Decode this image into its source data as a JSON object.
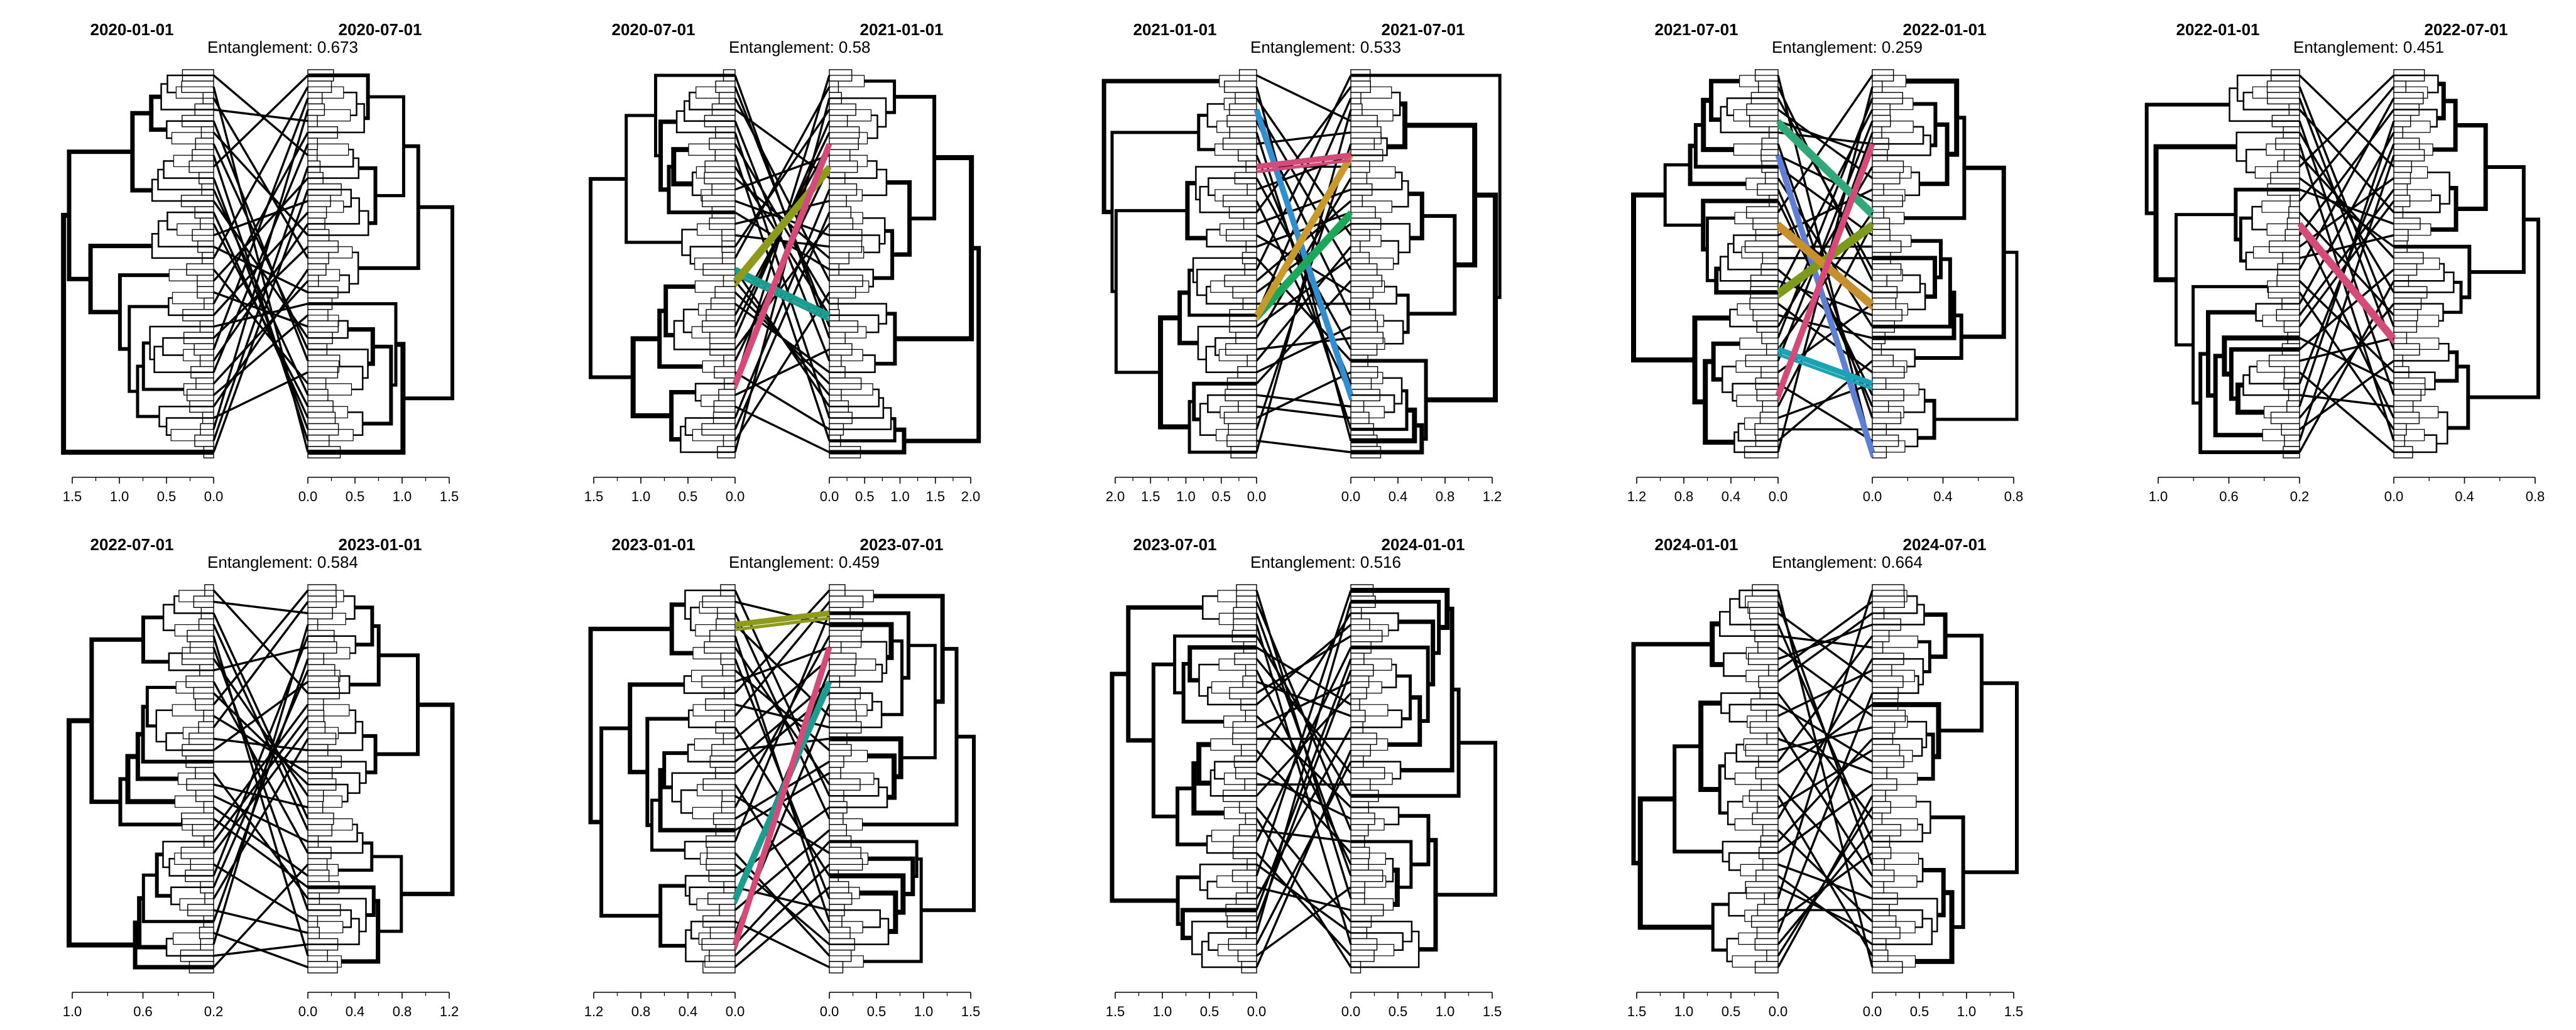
{
  "panels": [
    {
      "left_label": "2020-01-01",
      "right_label": "2020-07-01",
      "entanglement_text": "Entanglement: 0.673",
      "left_axis_ticks": [
        "1.5",
        "1.0",
        "0.5",
        "0.0"
      ],
      "right_axis_ticks": [
        "0.0",
        "0.5",
        "1.0",
        "1.5"
      ],
      "highlight_colors": []
    },
    {
      "left_label": "2020-07-01",
      "right_label": "2021-01-01",
      "entanglement_text": "Entanglement: 0.58",
      "left_axis_ticks": [
        "1.5",
        "1.0",
        "0.5",
        "0.0"
      ],
      "right_axis_ticks": [
        "0.0",
        "0.5",
        "1.0",
        "1.5",
        "2.0"
      ],
      "highlight_colors": [
        "#1a9e8f",
        "#8e9a1a",
        "#d64a7a"
      ]
    },
    {
      "left_label": "2021-01-01",
      "right_label": "2021-07-01",
      "entanglement_text": "Entanglement: 0.533",
      "left_axis_ticks": [
        "2.0",
        "1.5",
        "1.0",
        "0.5",
        "0.0"
      ],
      "right_axis_ticks": [
        "0.0",
        "0.4",
        "0.8",
        "1.2"
      ],
      "highlight_colors": [
        "#2f8fd0",
        "#1aa85a",
        "#c89a2a",
        "#d64a7a"
      ]
    },
    {
      "left_label": "2021-07-01",
      "right_label": "2022-01-01",
      "entanglement_text": "Entanglement: 0.259",
      "left_axis_ticks": [
        "1.2",
        "0.8",
        "0.4",
        "0.0"
      ],
      "right_axis_ticks": [
        "0.0",
        "0.4",
        "0.8"
      ],
      "highlight_colors": [
        "#5d7fd6",
        "#1aa3b3",
        "#7e9a1a",
        "#2fa97a",
        "#c8902a",
        "#d64a7a"
      ]
    },
    {
      "left_label": "2022-01-01",
      "right_label": "2022-07-01",
      "entanglement_text": "Entanglement: 0.451",
      "left_axis_ticks": [
        "1.0",
        "0.6",
        "0.2"
      ],
      "right_axis_ticks": [
        "0.0",
        "0.4",
        "0.8"
      ],
      "highlight_colors": [
        "#d64a7a"
      ]
    },
    {
      "left_label": "2022-07-01",
      "right_label": "2023-01-01",
      "entanglement_text": "Entanglement: 0.584",
      "left_axis_ticks": [
        "1.0",
        "0.6",
        "0.2"
      ],
      "right_axis_ticks": [
        "0.0",
        "0.4",
        "0.8",
        "1.2"
      ],
      "highlight_colors": []
    },
    {
      "left_label": "2023-01-01",
      "right_label": "2023-07-01",
      "entanglement_text": "Entanglement: 0.459",
      "left_axis_ticks": [
        "1.2",
        "0.8",
        "0.4",
        "0.0"
      ],
      "right_axis_ticks": [
        "0.0",
        "0.5",
        "1.0",
        "1.5"
      ],
      "highlight_colors": [
        "#8e9a1a",
        "#1a9e8f",
        "#d64a7a"
      ]
    },
    {
      "left_label": "2023-07-01",
      "right_label": "2024-01-01",
      "entanglement_text": "Entanglement: 0.516",
      "left_axis_ticks": [
        "1.5",
        "1.0",
        "0.5",
        "0.0"
      ],
      "right_axis_ticks": [
        "0.0",
        "0.5",
        "1.0",
        "1.5"
      ],
      "highlight_colors": []
    },
    {
      "left_label": "2024-01-01",
      "right_label": "2024-07-01",
      "entanglement_text": "Entanglement: 0.664",
      "left_axis_ticks": [
        "1.5",
        "1.0",
        "0.5",
        "0.0"
      ],
      "right_axis_ticks": [
        "0.0",
        "0.5",
        "1.0",
        "1.5"
      ],
      "highlight_colors": []
    }
  ]
}
